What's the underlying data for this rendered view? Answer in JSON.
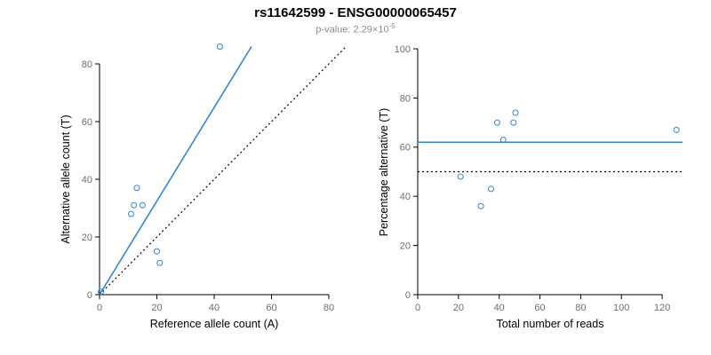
{
  "header": {
    "title": "rs11642599 - ENSG00000065457",
    "pvalue_text": "p-value: 2.29×10",
    "pvalue_exp": "-5"
  },
  "colors": {
    "accent_blue": "#2e86de",
    "point_blue": "#2e86de",
    "black": "#000000",
    "axis": "#000000",
    "tick_label": "#6e6e6e"
  },
  "chart_data": [
    {
      "type": "scatter",
      "name": "ref-vs-alt-allele-count-plot",
      "xlabel": "Reference allele count (A)",
      "ylabel": "Alternative allele count (T)",
      "xlim": [
        0,
        80
      ],
      "ylim": [
        0,
        80
      ],
      "xticks": [
        0,
        20,
        40,
        60,
        80
      ],
      "yticks": [
        0,
        20,
        40,
        60,
        80
      ],
      "grid": false,
      "legend": "none",
      "points": [
        [
          0.5,
          1
        ],
        [
          11,
          28
        ],
        [
          12,
          31
        ],
        [
          13,
          37
        ],
        [
          15,
          31
        ],
        [
          20,
          15
        ],
        [
          21,
          11
        ],
        [
          42,
          86
        ]
      ],
      "lines": [
        {
          "name": "regression-line",
          "style": "solid",
          "color": "accent",
          "x1": 0,
          "y1": 0,
          "x2": 53,
          "y2": 86
        },
        {
          "name": "identity-line",
          "style": "dotted",
          "color": "black",
          "x1": 0,
          "y1": 0,
          "x2": 86,
          "y2": 86
        }
      ]
    },
    {
      "type": "scatter",
      "name": "reads-vs-percentage-plot",
      "xlabel": "Total number of reads",
      "ylabel": "Percentage alternative (T)",
      "xlim": [
        0,
        130
      ],
      "ylim": [
        0,
        100
      ],
      "xticks": [
        0,
        20,
        40,
        60,
        80,
        100,
        120
      ],
      "yticks": [
        0,
        20,
        40,
        60,
        80,
        100
      ],
      "grid": false,
      "legend": "none",
      "points": [
        [
          21,
          48
        ],
        [
          31,
          36
        ],
        [
          36,
          43
        ],
        [
          39,
          70
        ],
        [
          42,
          63
        ],
        [
          47,
          70
        ],
        [
          48,
          74
        ],
        [
          127,
          67
        ]
      ],
      "lines": [
        {
          "name": "mean-percentage-line",
          "style": "solid",
          "color": "accent",
          "x1": 0,
          "y1": 62,
          "x2": 130,
          "y2": 62
        },
        {
          "name": "fifty-percent-line",
          "style": "dotted",
          "color": "black",
          "x1": 0,
          "y1": 50,
          "x2": 130,
          "y2": 50
        }
      ]
    }
  ]
}
